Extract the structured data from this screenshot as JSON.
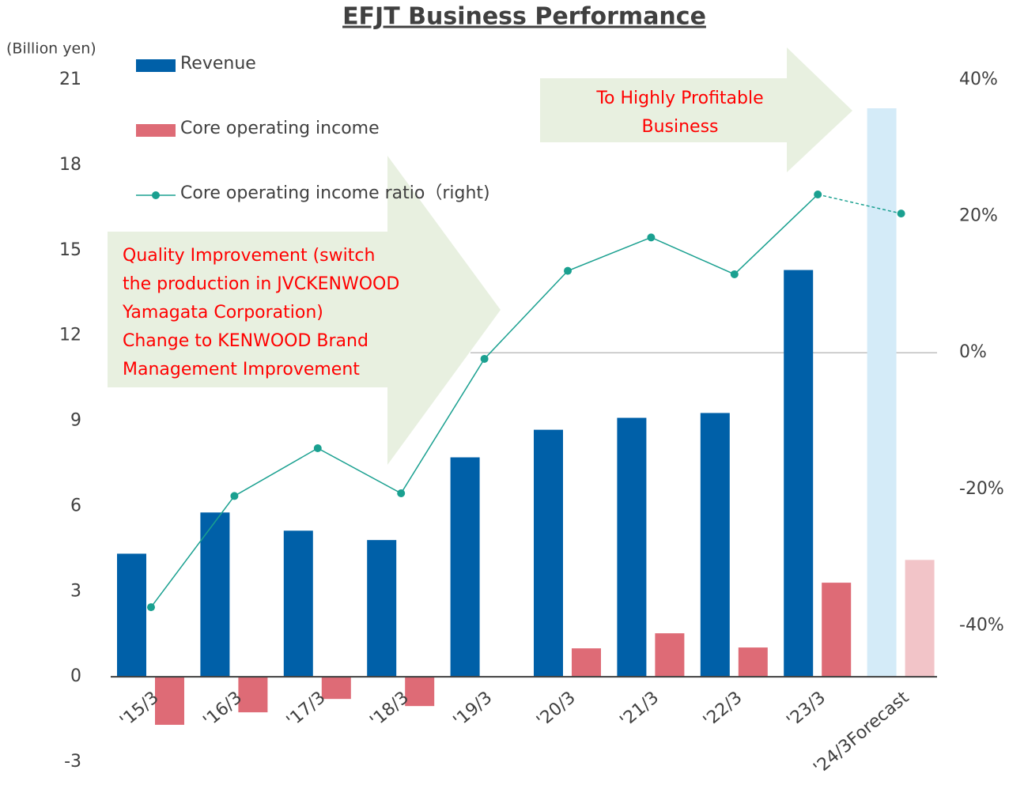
{
  "chart_data": {
    "type": "bar",
    "title": "EFJT Business Performance",
    "ylabel": "(Billion yen)",
    "categories": [
      "'15/3",
      "'16/3",
      "'17/3",
      "'18/3",
      "'19/3",
      "'20/3",
      "'21/3",
      "'22/3",
      "'23/3",
      "'24/3Forecast"
    ],
    "series": [
      {
        "name": "Revenue",
        "type": "bar",
        "color": "#0060a8",
        "colors": [
          "#0060a8",
          "#0060a8",
          "#0060a8",
          "#0060a8",
          "#0060a8",
          "#0060a8",
          "#0060a8",
          "#0060a8",
          "#0060a8",
          "#d4ebf8"
        ],
        "values": [
          4.33,
          5.78,
          5.14,
          4.81,
          7.72,
          8.69,
          9.11,
          9.28,
          14.31,
          20
        ]
      },
      {
        "name": "Core operating income",
        "type": "bar",
        "color": "#de6b76",
        "colors": [
          "#de6b76",
          "#de6b76",
          "#de6b76",
          "#de6b76",
          "#de6b76",
          "#de6b76",
          "#de6b76",
          "#de6b76",
          "#de6b76",
          "#f2c4c8"
        ],
        "values": [
          -1.69,
          -1.25,
          -0.78,
          -1.03,
          0,
          1.0,
          1.53,
          1.03,
          3.31,
          4.11
        ]
      },
      {
        "name": "Core operating income ratio（right)",
        "type": "line",
        "axis": "y2",
        "color": "#1aa090",
        "dash_from": 8,
        "values": [
          -37.3,
          -21.0,
          -14.0,
          -20.6,
          -0.9,
          12.0,
          16.9,
          11.5,
          23.2,
          20.4
        ]
      }
    ],
    "ylim": [
      -3,
      21
    ],
    "yticks": [
      -3,
      0,
      3,
      6,
      9,
      12,
      15,
      18,
      21
    ],
    "y2lim": [
      -60,
      40
    ],
    "y2ticks": [
      {
        "value": -40,
        "label": "-40%"
      },
      {
        "value": -20,
        "label": "-20%"
      },
      {
        "value": 0,
        "label": "0%"
      },
      {
        "value": 20,
        "label": "20%"
      },
      {
        "value": 40,
        "label": "40%"
      }
    ],
    "legend": "top-left",
    "annotations": [
      {
        "lines": [
          "Quality Improvement (switch",
          "the production in JVCKENWOOD",
          "Yamagata Corporation)",
          "Change to KENWOOD Brand",
          "Management Improvement"
        ],
        "color": "#ff0000"
      },
      {
        "lines": [
          "To Highly Profitable",
          "Business"
        ],
        "color": "#ff0000"
      }
    ]
  }
}
